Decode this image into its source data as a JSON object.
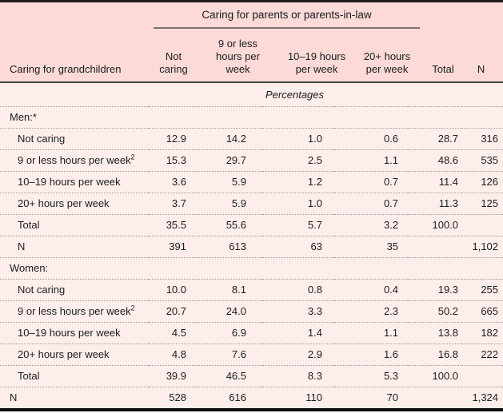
{
  "table": {
    "spanner": "Caring for parents or parents-in-law",
    "row_header": "Caring for grandchildren",
    "columns": [
      "Not\ncaring",
      "9 or less\nhours per\nweek",
      "10–19 hours\nper week",
      "20+ hours\nper week",
      "Total",
      "N"
    ],
    "units_label": "Percentages",
    "rows": [
      {
        "label": "Men:*",
        "sup": "",
        "indent": false,
        "values": [
          "",
          "",
          "",
          "",
          "",
          ""
        ]
      },
      {
        "label": "Not caring",
        "sup": "",
        "indent": true,
        "values": [
          "12.9",
          "14.2",
          "1.0",
          "0.6",
          "28.7",
          "316"
        ]
      },
      {
        "label": "9 or less hours per week",
        "sup": "2",
        "indent": true,
        "values": [
          "15.3",
          "29.7",
          "2.5",
          "1.1",
          "48.6",
          "535"
        ]
      },
      {
        "label": "10–19 hours per week",
        "sup": "",
        "indent": true,
        "values": [
          "3.6",
          "5.9",
          "1.2",
          "0.7",
          "11.4",
          "126"
        ]
      },
      {
        "label": "20+ hours per week",
        "sup": "",
        "indent": true,
        "values": [
          "3.7",
          "5.9",
          "1.0",
          "0.7",
          "11.3",
          "125"
        ]
      },
      {
        "label": "Total",
        "sup": "",
        "indent": true,
        "values": [
          "35.5",
          "55.6",
          "5.7",
          "3.2",
          "100.0",
          ""
        ]
      },
      {
        "label": "N",
        "sup": "",
        "indent": true,
        "values": [
          "391",
          "613",
          "63",
          "35",
          "",
          "1,102"
        ]
      },
      {
        "label": "Women:",
        "sup": "",
        "indent": false,
        "values": [
          "",
          "",
          "",
          "",
          "",
          ""
        ]
      },
      {
        "label": "Not caring",
        "sup": "",
        "indent": true,
        "values": [
          "10.0",
          "8.1",
          "0.8",
          "0.4",
          "19.3",
          "255"
        ]
      },
      {
        "label": "9 or less hours per week",
        "sup": "2",
        "indent": true,
        "values": [
          "20.7",
          "24.0",
          "3.3",
          "2.3",
          "50.2",
          "665"
        ]
      },
      {
        "label": "10–19 hours per week",
        "sup": "",
        "indent": true,
        "values": [
          "4.5",
          "6.9",
          "1.4",
          "1.1",
          "13.8",
          "182"
        ]
      },
      {
        "label": "20+ hours per week",
        "sup": "",
        "indent": true,
        "values": [
          "4.8",
          "7.6",
          "2.9",
          "1.6",
          "16.8",
          "222"
        ]
      },
      {
        "label": "Total",
        "sup": "",
        "indent": true,
        "values": [
          "39.9",
          "46.5",
          "8.3",
          "5.3",
          "100.0",
          ""
        ]
      },
      {
        "label": "N",
        "sup": "",
        "indent": false,
        "values": [
          "528",
          "616",
          "110",
          "70",
          "",
          "1,324"
        ]
      }
    ]
  },
  "colors": {
    "header_band": "#fbdad8",
    "body_background": "#fdeeec",
    "top_rule": "#241b1b",
    "bottom_rule": "#0a0a0a",
    "dotted_rule": "#a39898"
  }
}
